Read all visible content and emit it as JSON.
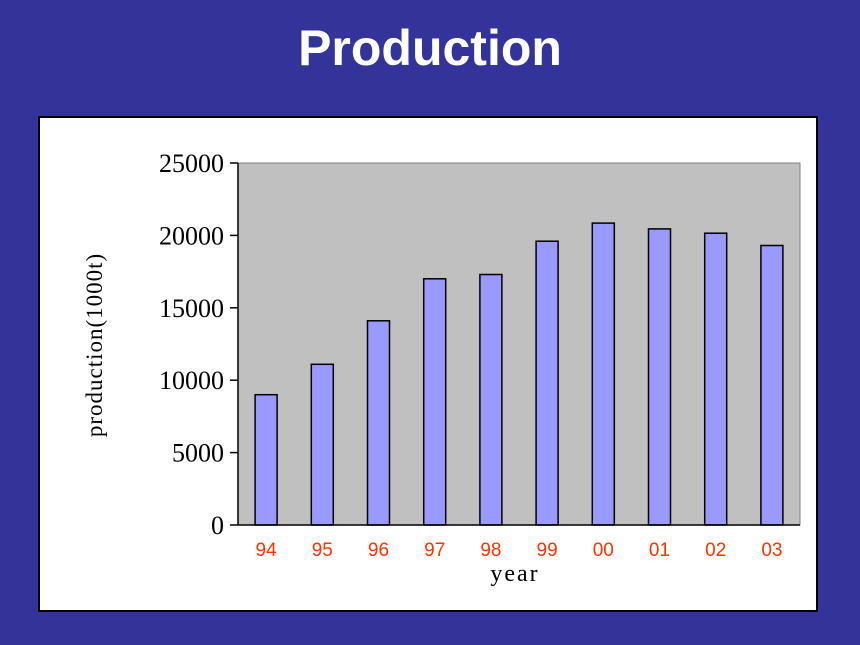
{
  "slide": {
    "title": "Production"
  },
  "chart_data": {
    "type": "bar",
    "title": "",
    "xlabel": "year",
    "ylabel": "production(1000t)",
    "categories": [
      "94",
      "95",
      "96",
      "97",
      "98",
      "99",
      "00",
      "01",
      "02",
      "03"
    ],
    "values": [
      9000,
      11100,
      14100,
      17000,
      17300,
      19600,
      20850,
      20450,
      20150,
      19300
    ],
    "ylim": [
      0,
      25000
    ],
    "yticks": [
      0,
      5000,
      10000,
      15000,
      20000,
      25000
    ],
    "grid": false,
    "legend": "none",
    "colors": {
      "bar_fill": "#9999ff",
      "plot_background": "#c0c0c0",
      "category_label": "#ff3300"
    }
  }
}
